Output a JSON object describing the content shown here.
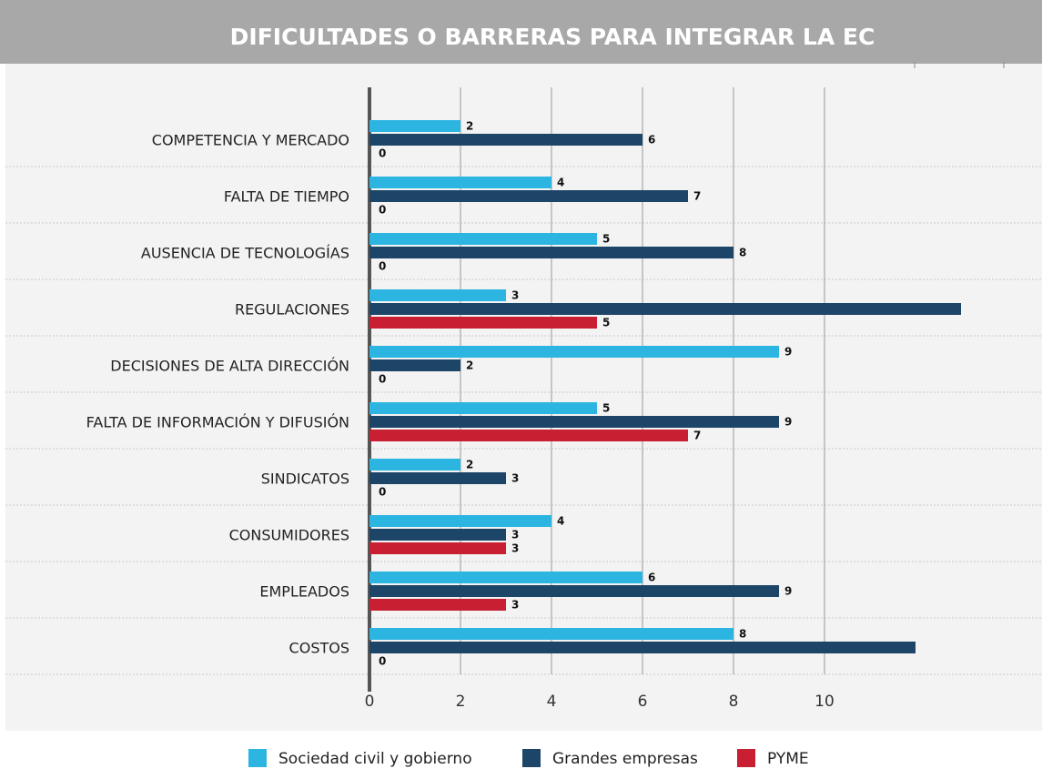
{
  "chart_data": {
    "type": "bar",
    "orientation": "horizontal",
    "title": "DIFICULTADES O BARRERAS PARA INTEGRAR LA EC",
    "categories": [
      "COMPETENCIA Y MERCADO",
      "FALTA DE TIEMPO",
      "AUSENCIA DE TECNOLOGÍAS",
      "REGULACIONES",
      "DECISIONES DE ALTA DIRECCIÓN",
      "FALTA DE INFORMACIÓN Y DIFUSIÓN",
      "SINDICATOS",
      "CONSUMIDORES",
      "EMPLEADOS",
      "COSTOS"
    ],
    "series": [
      {
        "name": "Sociedad civil y gobierno",
        "color": "#2bb5e0",
        "values": [
          2,
          4,
          5,
          3,
          9,
          5,
          2,
          4,
          6,
          8
        ]
      },
      {
        "name": "Grandes empresas",
        "color": "#1c4568",
        "values": [
          6,
          7,
          8,
          13,
          2,
          9,
          3,
          3,
          9,
          12
        ],
        "value_labels": [
          "6",
          "7",
          "8",
          null,
          "2",
          "9",
          "3",
          "3",
          "9",
          null
        ]
      },
      {
        "name": "PYME",
        "color": "#c81f33",
        "values": [
          0,
          0,
          0,
          5,
          0,
          7,
          0,
          3,
          3,
          0
        ]
      }
    ],
    "xlim": [
      0,
      14.8
    ],
    "xticks": [
      0,
      2,
      4,
      6,
      8,
      10
    ],
    "grid": true,
    "legend": "bottom"
  }
}
